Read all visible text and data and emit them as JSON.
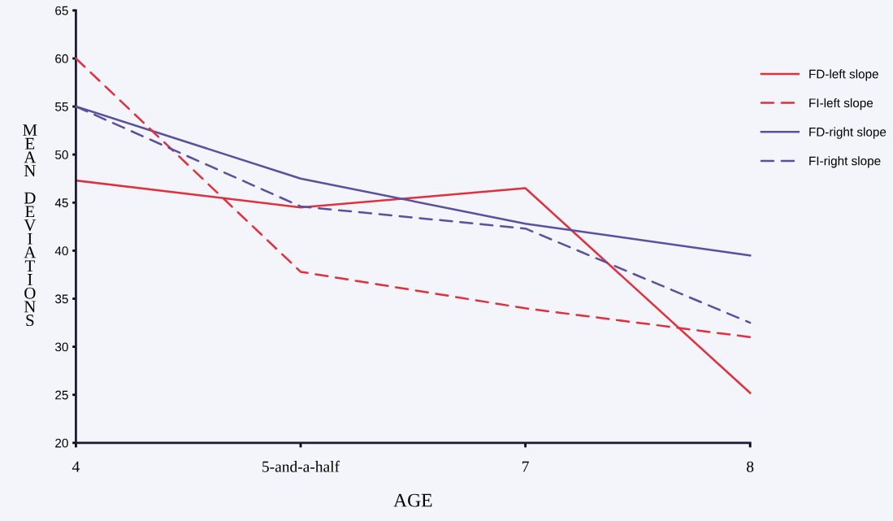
{
  "chart_data": {
    "type": "line",
    "xlabel": "AGE",
    "ylabel": "MEAN DEVIATIONS",
    "categories": [
      "4",
      "5-and-a-half",
      "7",
      "8"
    ],
    "ylim": [
      20,
      65
    ],
    "yticks": [
      20,
      25,
      30,
      35,
      40,
      45,
      50,
      55,
      60,
      65
    ],
    "grid": false,
    "legend": "right",
    "marker": "none",
    "series": [
      {
        "name": "FD-left slope",
        "color": "#e0303c",
        "line_style": "solid",
        "values": [
          47.3,
          44.5,
          46.5,
          25.2
        ]
      },
      {
        "name": "FI-left slope",
        "color": "#e0303c",
        "line_style": "dashed",
        "values": [
          60,
          37.8,
          34,
          31
        ]
      },
      {
        "name": "FD-right slope",
        "color": "#5a4fa0",
        "line_style": "solid",
        "values": [
          55,
          47.5,
          42.8,
          39.5
        ]
      },
      {
        "name": "FI-right slope",
        "color": "#5a4fa0",
        "line_style": "dashed",
        "values": [
          55,
          44.6,
          42.3,
          32.5
        ]
      }
    ]
  }
}
